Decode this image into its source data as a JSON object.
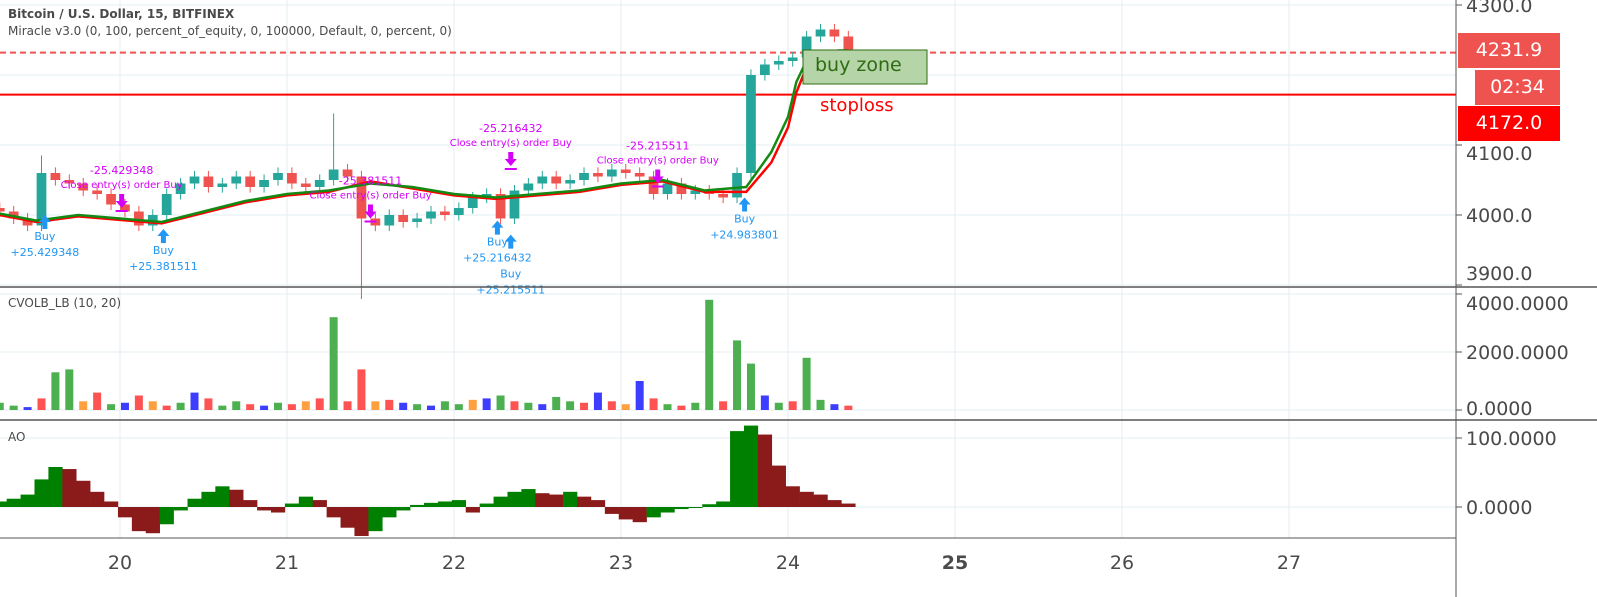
{
  "header": {
    "symbol_title": "Bitcoin / U.S. Dollar, 15, BITFINEX",
    "strategy_label": "Miracle v3.0 (0, 100, percent_of_equity, 0, 100000, Default, 0, percent, 0)"
  },
  "volume_pane": {
    "label": "CVOLB_LB (10, 20)"
  },
  "ao_pane": {
    "label": "AO"
  },
  "price_tags": {
    "last_price": "4231.9",
    "countdown": "02:34",
    "stoploss_price": "4172.0"
  },
  "drawings": {
    "buy_zone": "buy zone",
    "stoploss": "stoploss"
  },
  "colors": {
    "up": "#26a69a",
    "down": "#ef5350",
    "ma_green": "#138a13",
    "ma_red": "#ff0000",
    "buy_marker": "#2196f3",
    "close_marker": "#d500f9",
    "last_price_tag": "#ef5350",
    "stoploss_tag": "#ff0000",
    "ao_up": "#008000",
    "ao_down": "#8b1a1a",
    "buy_zone_fill": "#b5d4a8",
    "buy_zone_text": "#2e6b12"
  },
  "chart_data": {
    "type": "candlestick",
    "x_axis": {
      "unit": "day of month",
      "ticks": [
        "20",
        "21",
        "22",
        "23",
        "24",
        "25",
        "26",
        "27"
      ],
      "bold_tick": "25",
      "range": [
        19.28,
        27.85
      ]
    },
    "price_axis": {
      "ticks": [
        "4300.0",
        "4100.0",
        "4000.0",
        "3900.0"
      ],
      "range": [
        3885,
        4307
      ]
    },
    "bar_interval_days": 0.0833,
    "start_day": 19.28,
    "closes": [
      4005,
      3995,
      3985,
      4060,
      4050,
      4045,
      4035,
      4030,
      4015,
      4005,
      3985,
      4000,
      4030,
      4045,
      4055,
      4040,
      4045,
      4055,
      4040,
      4050,
      4060,
      4045,
      4040,
      4050,
      4065,
      4055,
      3995,
      3985,
      4000,
      3990,
      3995,
      4005,
      4000,
      4010,
      4025,
      4030,
      3995,
      4035,
      4045,
      4055,
      4045,
      4050,
      4060,
      4055,
      4065,
      4060,
      4055,
      4030,
      4045,
      4030,
      4035,
      4030,
      4025,
      4060,
      4200,
      4215,
      4220,
      4225,
      4255,
      4265,
      4255,
      4232
    ],
    "open_first": 4010,
    "wick_extremes": [
      {
        "bar": 24,
        "high": 4145
      },
      {
        "bar": 26,
        "low": 3880
      },
      {
        "bar": 3,
        "high": 4085
      }
    ],
    "horizontal_lines": [
      {
        "price": 4231.9,
        "style": "dashed",
        "color": "#ef5350"
      },
      {
        "price": 4172.0,
        "style": "solid",
        "color": "#ff0000"
      }
    ],
    "ma_lines": [
      {
        "color": "#ff0000",
        "points": [
          [
            19.28,
            4000
          ],
          [
            19.5,
            3990
          ],
          [
            19.75,
            3998
          ],
          [
            20,
            3993
          ],
          [
            20.25,
            3988
          ],
          [
            20.5,
            4003
          ],
          [
            20.75,
            4018
          ],
          [
            21,
            4028
          ],
          [
            21.25,
            4033
          ],
          [
            21.5,
            4048
          ],
          [
            21.75,
            4038
          ],
          [
            22,
            4028
          ],
          [
            22.25,
            4023
          ],
          [
            22.5,
            4028
          ],
          [
            22.75,
            4033
          ],
          [
            23,
            4043
          ],
          [
            23.25,
            4048
          ],
          [
            23.5,
            4033
          ],
          [
            23.75,
            4033
          ],
          [
            23.9,
            4075
          ],
          [
            24,
            4125
          ],
          [
            24.05,
            4175
          ],
          [
            24.1,
            4205
          ],
          [
            24.2,
            4222
          ],
          [
            24.3,
            4230
          ],
          [
            24.36,
            4232
          ]
        ]
      },
      {
        "color": "#138a13",
        "points": [
          [
            19.28,
            4002
          ],
          [
            19.5,
            3992
          ],
          [
            19.75,
            4000
          ],
          [
            20,
            3995
          ],
          [
            20.25,
            3990
          ],
          [
            20.5,
            4005
          ],
          [
            20.75,
            4020
          ],
          [
            21,
            4030
          ],
          [
            21.25,
            4035
          ],
          [
            21.5,
            4045
          ],
          [
            21.75,
            4040
          ],
          [
            22,
            4030
          ],
          [
            22.25,
            4025
          ],
          [
            22.5,
            4030
          ],
          [
            22.75,
            4035
          ],
          [
            23,
            4045
          ],
          [
            23.25,
            4050
          ],
          [
            23.5,
            4035
          ],
          [
            23.75,
            4040
          ],
          [
            23.9,
            4090
          ],
          [
            24,
            4140
          ],
          [
            24.05,
            4190
          ],
          [
            24.1,
            4215
          ],
          [
            24.2,
            4228
          ],
          [
            24.3,
            4235
          ],
          [
            24.36,
            4235
          ]
        ]
      }
    ],
    "trades": [
      {
        "type": "buy",
        "day": 19.55,
        "price": 4000,
        "label": "Buy",
        "value": "+25.429348"
      },
      {
        "type": "close",
        "day": 20.01,
        "price": 4010,
        "label": "Close entry(s) order Buy",
        "value": "-25.429348"
      },
      {
        "type": "buy",
        "day": 20.26,
        "price": 3980,
        "label": "Buy",
        "value": "+25.381511"
      },
      {
        "type": "close",
        "day": 21.5,
        "price": 3995,
        "label": "Close entry(s) order Buy",
        "value": "-25.381511"
      },
      {
        "type": "buy",
        "day": 22.26,
        "price": 3992,
        "label": "Buy",
        "value": "+25.216432"
      },
      {
        "type": "close",
        "day": 22.34,
        "price": 4070,
        "label": "Close entry(s) order Buy",
        "value": "-25.216432"
      },
      {
        "type": "buy",
        "day": 22.34,
        "price": 3972,
        "label": "Buy",
        "value": "+25.215511"
      },
      {
        "type": "close",
        "day": 23.22,
        "price": 4045,
        "label": "Close entry(s) order Buy",
        "value": "-25.215511"
      },
      {
        "type": "buy",
        "day": 23.74,
        "price": 4025,
        "label": "Buy",
        "value": "+24.983801"
      }
    ],
    "volume": {
      "ticks": [
        "4000.0000",
        "2000.0000",
        "0.0000"
      ],
      "range": [
        0,
        4100
      ],
      "values": [
        250,
        150,
        100,
        400,
        1300,
        1400,
        300,
        600,
        200,
        250,
        500,
        300,
        150,
        250,
        600,
        400,
        150,
        300,
        200,
        150,
        250,
        200,
        300,
        400,
        3200,
        300,
        1400,
        300,
        350,
        250,
        200,
        150,
        300,
        200,
        350,
        400,
        500,
        300,
        250,
        200,
        450,
        300,
        250,
        600,
        300,
        200,
        1000,
        400,
        200,
        150,
        250,
        3800,
        300,
        2400,
        1600,
        500,
        250,
        300,
        1800,
        350,
        200,
        150
      ],
      "colors": [
        "g",
        "g",
        "b",
        "r",
        "g",
        "g",
        "o",
        "r",
        "g",
        "b",
        "r",
        "o",
        "r",
        "g",
        "b",
        "r",
        "g",
        "g",
        "r",
        "b",
        "g",
        "r",
        "o",
        "r",
        "g",
        "r",
        "r",
        "o",
        "r",
        "b",
        "g",
        "b",
        "g",
        "g",
        "o",
        "b",
        "g",
        "r",
        "g",
        "b",
        "g",
        "g",
        "r",
        "b",
        "r",
        "o",
        "b",
        "r",
        "g",
        "r",
        "g",
        "g",
        "r",
        "g",
        "g",
        "b",
        "g",
        "r",
        "g",
        "g",
        "b",
        "r"
      ]
    },
    "ao": {
      "ticks": [
        "100.0000",
        "0.0000"
      ],
      "range": [
        -40,
        125
      ],
      "values": [
        8,
        12,
        18,
        40,
        58,
        55,
        38,
        22,
        8,
        -15,
        -35,
        -38,
        -25,
        -5,
        12,
        22,
        30,
        25,
        10,
        -5,
        -8,
        5,
        15,
        10,
        -15,
        -30,
        -42,
        -35,
        -15,
        -5,
        3,
        6,
        8,
        10,
        -8,
        5,
        15,
        22,
        26,
        20,
        18,
        22,
        15,
        10,
        -10,
        -18,
        -22,
        -15,
        -8,
        -3,
        0,
        4,
        8,
        110,
        118,
        105,
        60,
        30,
        22,
        18,
        10,
        5
      ]
    }
  }
}
